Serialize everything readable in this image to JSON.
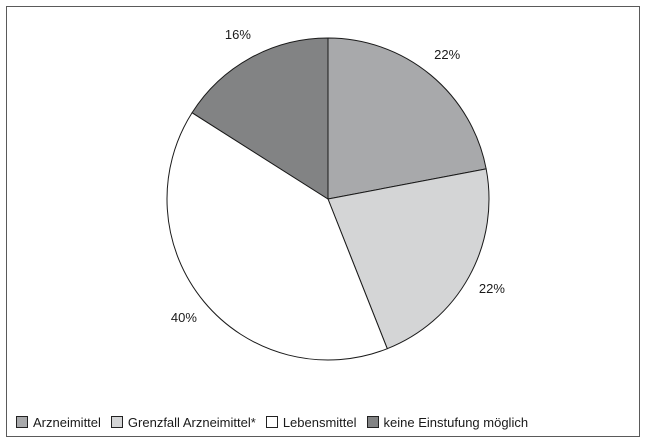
{
  "chart_data": {
    "type": "pie",
    "title": "",
    "start": "12 o'clock",
    "direction": "clockwise",
    "slices": [
      {
        "name": "Arzneimittel",
        "value": 22,
        "label": "22%",
        "color": "#a8a9ab"
      },
      {
        "name": "Grenzfall Arzneimittel*",
        "value": 22,
        "label": "22%",
        "color": "#d4d5d6"
      },
      {
        "name": "Lebensmittel",
        "value": 40,
        "label": "40%",
        "color": "#ffffff"
      },
      {
        "name": "keine Einstufung möglich",
        "value": 16,
        "label": "16%",
        "color": "#828384"
      }
    ],
    "legend": {
      "position": "bottom",
      "items": [
        {
          "label": "Arzneimittel",
          "color": "#a8a9ab"
        },
        {
          "label": "Grenzfall Arzneimittel*",
          "color": "#d4d5d6"
        },
        {
          "label": "Lebensmittel",
          "color": "#ffffff"
        },
        {
          "label": "keine Einstufung möglich",
          "color": "#828384"
        }
      ]
    }
  }
}
